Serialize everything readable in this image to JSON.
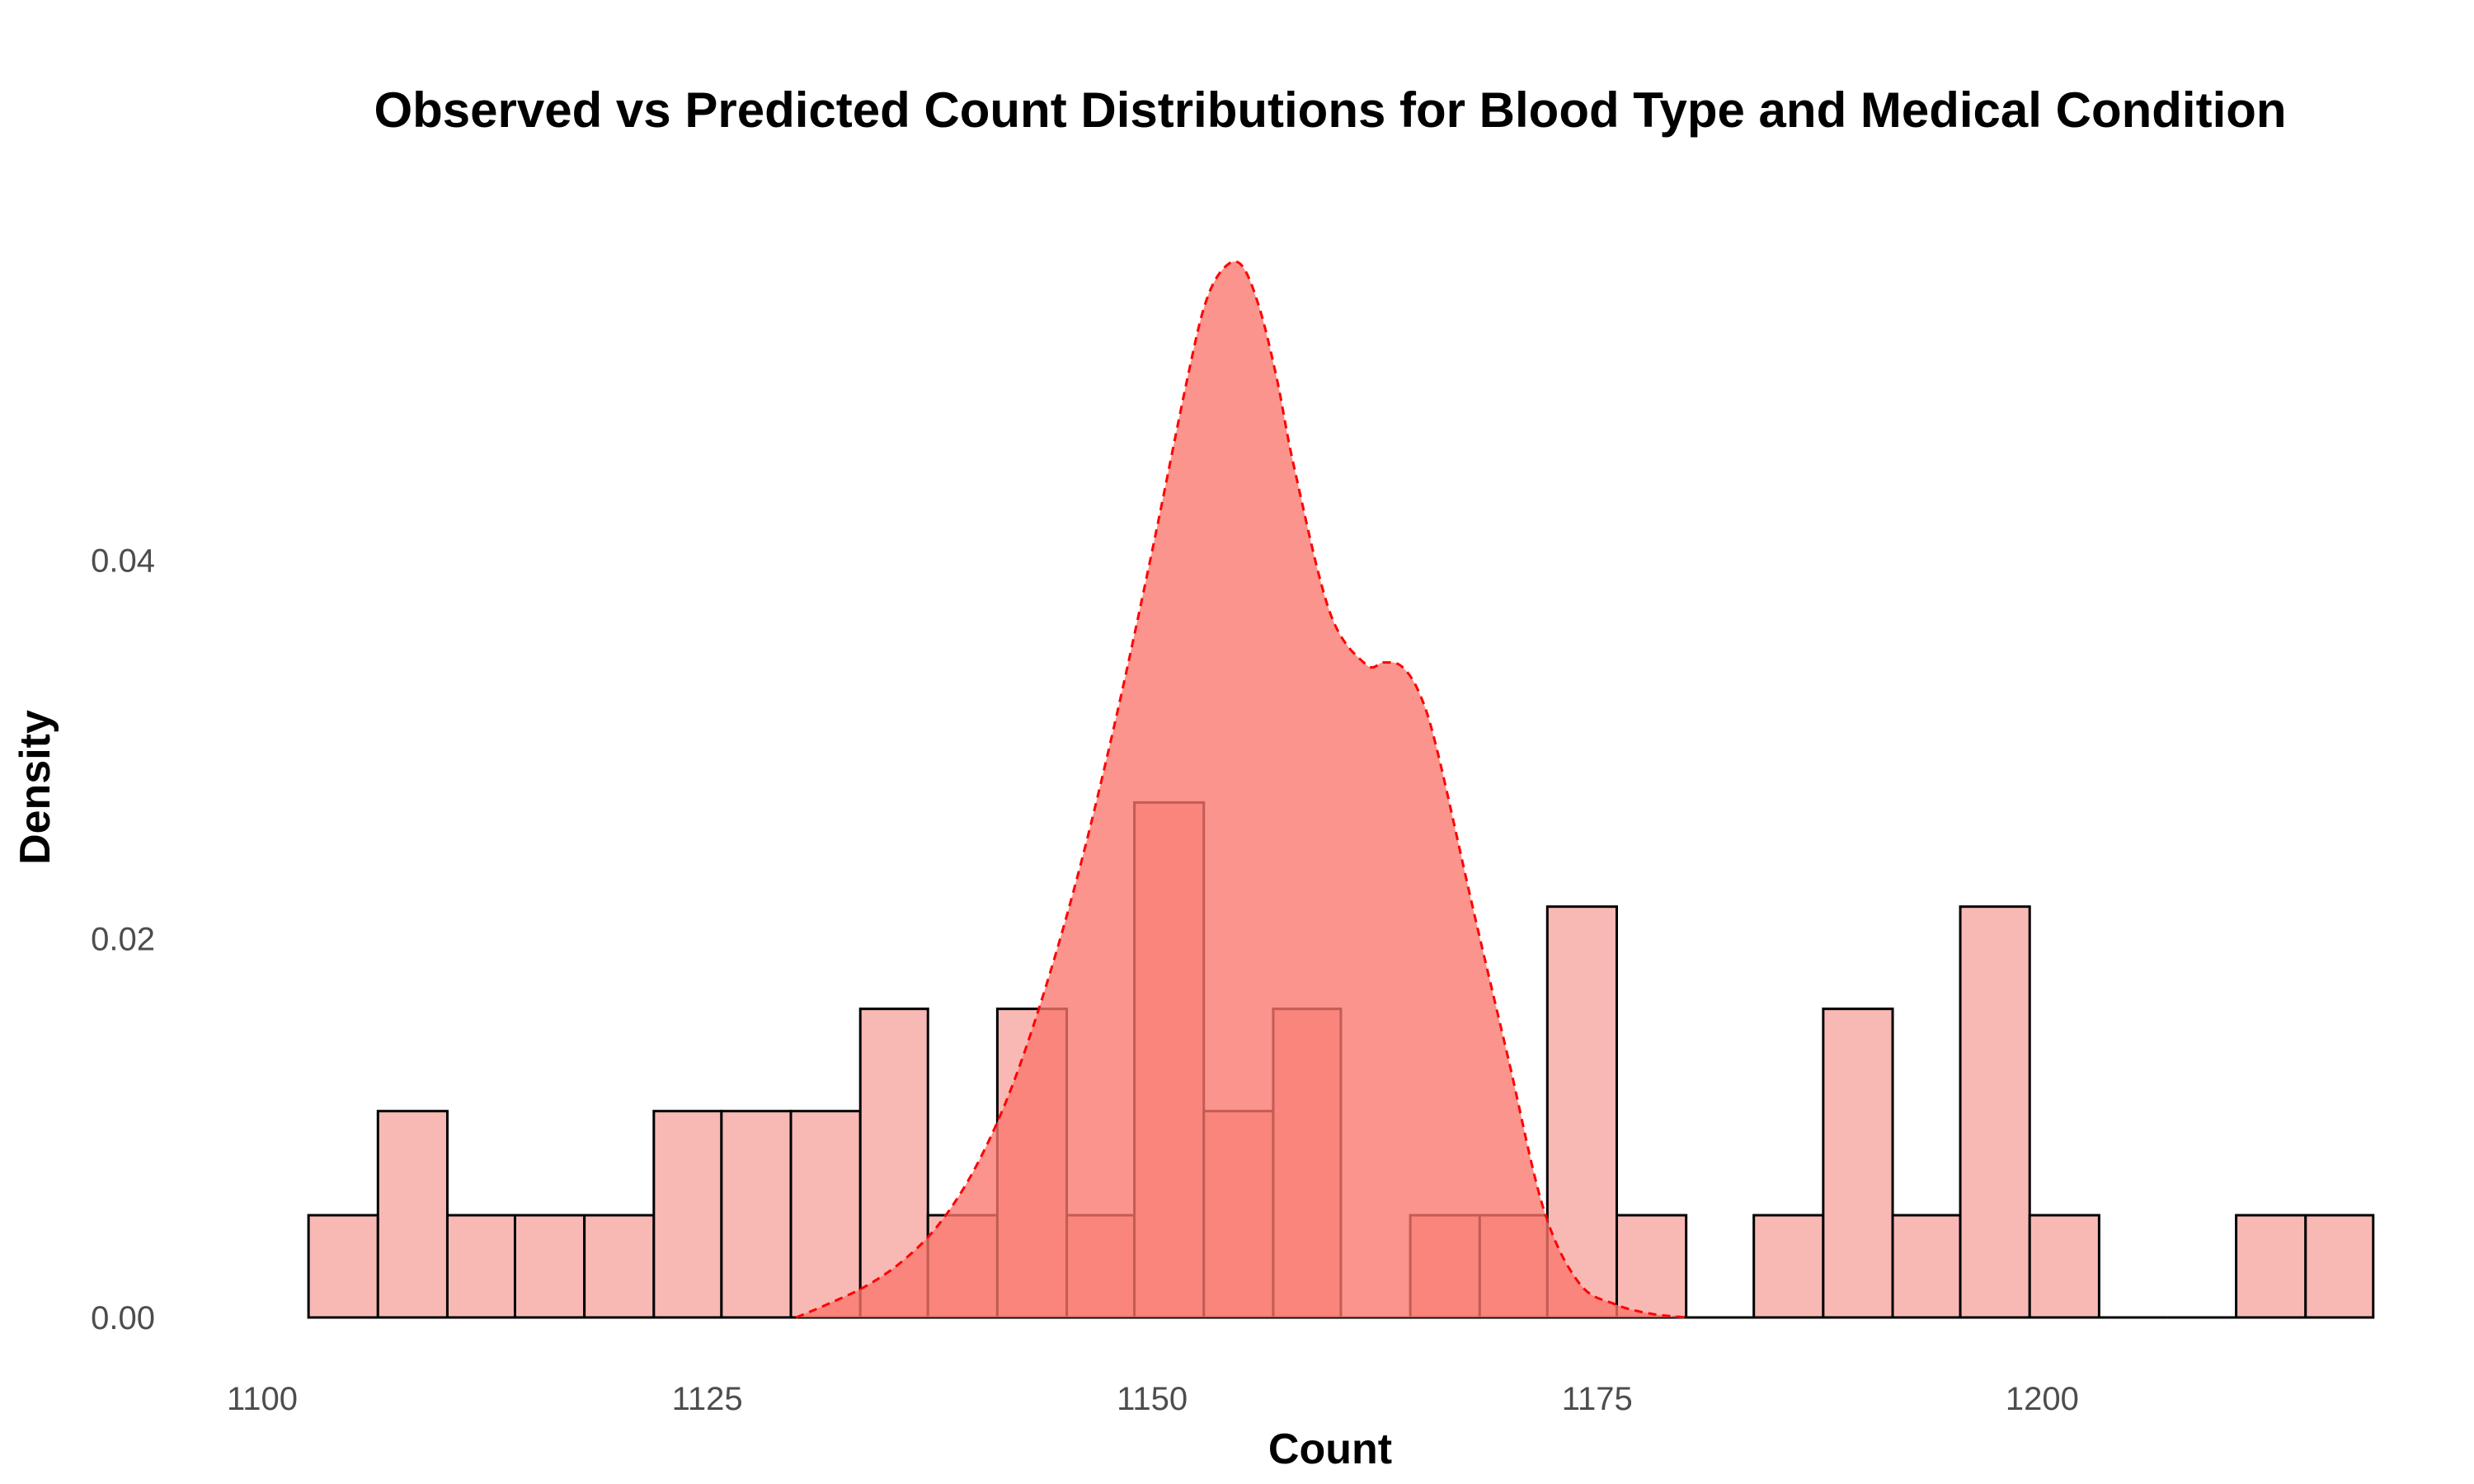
{
  "chart_data": {
    "type": "histogram",
    "title": "Observed vs Predicted Count Distributions for Blood Type and Medical Condition",
    "xlabel": "Count",
    "ylabel": "Density",
    "xlim": [
      1100,
      1220
    ],
    "ylim": [
      0,
      0.056
    ],
    "x_ticks": [
      1100,
      1125,
      1150,
      1175,
      1200
    ],
    "x_tick_labels": [
      "1100",
      "1125",
      "1150",
      "1175",
      "1200"
    ],
    "y_ticks": [
      0,
      0.02,
      0.04
    ],
    "y_tick_labels": [
      "0.00",
      "0.02",
      "0.04"
    ],
    "grid": false,
    "legend": "none",
    "observed_histogram": {
      "fill": "#f8b9b5",
      "stroke": "#000000",
      "bins": [
        {
          "x0": 1102.6,
          "x1": 1106.5,
          "density": 0.0054
        },
        {
          "x0": 1106.5,
          "x1": 1110.4,
          "density": 0.0109
        },
        {
          "x0": 1110.4,
          "x1": 1114.2,
          "density": 0.0054
        },
        {
          "x0": 1114.2,
          "x1": 1118.1,
          "density": 0.0054
        },
        {
          "x0": 1118.1,
          "x1": 1122.0,
          "density": 0.0054
        },
        {
          "x0": 1122.0,
          "x1": 1125.8,
          "density": 0.0109
        },
        {
          "x0": 1125.8,
          "x1": 1129.7,
          "density": 0.0109
        },
        {
          "x0": 1129.7,
          "x1": 1133.6,
          "density": 0.0109
        },
        {
          "x0": 1133.6,
          "x1": 1137.4,
          "density": 0.0163
        },
        {
          "x0": 1137.4,
          "x1": 1141.3,
          "density": 0.0054
        },
        {
          "x0": 1141.3,
          "x1": 1145.2,
          "density": 0.0163
        },
        {
          "x0": 1145.2,
          "x1": 1149.0,
          "density": 0.0054
        },
        {
          "x0": 1149.0,
          "x1": 1152.9,
          "density": 0.0272
        },
        {
          "x0": 1152.9,
          "x1": 1156.8,
          "density": 0.0109
        },
        {
          "x0": 1156.8,
          "x1": 1160.6,
          "density": 0.0163
        },
        {
          "x0": 1160.6,
          "x1": 1164.5,
          "density": 0.0
        },
        {
          "x0": 1164.5,
          "x1": 1168.4,
          "density": 0.0054
        },
        {
          "x0": 1168.4,
          "x1": 1172.2,
          "density": 0.0054
        },
        {
          "x0": 1172.2,
          "x1": 1176.1,
          "density": 0.0217
        },
        {
          "x0": 1176.1,
          "x1": 1180.0,
          "density": 0.0054
        },
        {
          "x0": 1180.0,
          "x1": 1183.8,
          "density": 0.0
        },
        {
          "x0": 1183.8,
          "x1": 1187.7,
          "density": 0.0054
        },
        {
          "x0": 1187.7,
          "x1": 1191.6,
          "density": 0.0163
        },
        {
          "x0": 1191.6,
          "x1": 1195.4,
          "density": 0.0054
        },
        {
          "x0": 1195.4,
          "x1": 1199.3,
          "density": 0.0217
        },
        {
          "x0": 1199.3,
          "x1": 1203.2,
          "density": 0.0054
        },
        {
          "x0": 1203.2,
          "x1": 1207.0,
          "density": 0.0
        },
        {
          "x0": 1207.0,
          "x1": 1210.9,
          "density": 0.0
        },
        {
          "x0": 1210.9,
          "x1": 1214.8,
          "density": 0.0054
        },
        {
          "x0": 1214.8,
          "x1": 1218.6,
          "density": 0.0054
        }
      ]
    },
    "predicted_density": {
      "fill": "#f8766d",
      "stroke": "#ff0000",
      "line_style": "dashed",
      "x": [
        1130,
        1132,
        1134,
        1136,
        1138,
        1140,
        1142,
        1144,
        1146,
        1148,
        1150,
        1152,
        1153,
        1154,
        1155,
        1156,
        1157,
        1158,
        1160,
        1162,
        1163,
        1164,
        1165,
        1166,
        1168,
        1170,
        1172,
        1174,
        1176,
        1178,
        1180
      ],
      "y": [
        0.0,
        0.0008,
        0.0017,
        0.003,
        0.0049,
        0.0078,
        0.0119,
        0.0174,
        0.024,
        0.0318,
        0.0405,
        0.0497,
        0.0536,
        0.0554,
        0.0556,
        0.0534,
        0.0496,
        0.0448,
        0.0372,
        0.0345,
        0.0346,
        0.0344,
        0.033,
        0.03,
        0.0217,
        0.0137,
        0.0057,
        0.0018,
        0.0007,
        0.0002,
        0.0
      ]
    }
  }
}
